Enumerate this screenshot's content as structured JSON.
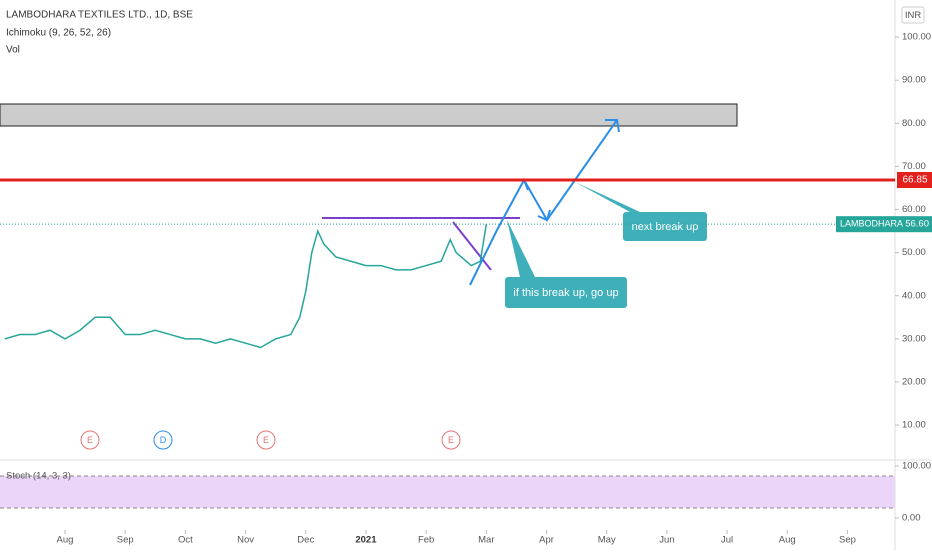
{
  "chart_data": {
    "type": "line",
    "title": "LAMBODHARA TEXTILES LTD., 1D, BSE",
    "indicators": [
      "Ichimoku (9, 26, 52, 26)",
      "Vol"
    ],
    "currency": "INR",
    "x": [
      -1.0,
      -0.75,
      -0.5,
      -0.25,
      0,
      0.25,
      0.5,
      0.75,
      1.0,
      1.25,
      1.5,
      1.75,
      2.0,
      2.25,
      2.5,
      2.75,
      3.0,
      3.25,
      3.5,
      3.75,
      3.9,
      4.0,
      4.1,
      4.2,
      4.3,
      4.5,
      4.75,
      5.0,
      5.25,
      5.5,
      5.75,
      6.0,
      6.25,
      6.4,
      6.5,
      6.75,
      6.9,
      7.0
    ],
    "series": [
      {
        "name": "LAMBODHARA",
        "color": "#26a69a",
        "values": [
          30,
          31,
          31,
          32,
          30,
          32,
          35,
          35,
          31,
          31,
          32,
          31,
          30,
          30,
          29,
          30,
          29,
          28,
          30,
          31,
          35,
          41,
          50,
          55,
          52,
          49,
          48,
          47,
          47,
          46,
          46,
          47,
          48,
          53,
          50,
          47,
          48,
          56.6
        ]
      }
    ],
    "xlim": [
      -1.08,
      13.79
    ],
    "xticks": [
      {
        "value": 0,
        "label": "Aug"
      },
      {
        "value": 1,
        "label": "Sep"
      },
      {
        "value": 2,
        "label": "Oct"
      },
      {
        "value": 3,
        "label": "Nov"
      },
      {
        "value": 4,
        "label": "Dec"
      },
      {
        "value": 5,
        "label": "2021"
      },
      {
        "value": 6,
        "label": "Feb"
      },
      {
        "value": 7,
        "label": "Mar"
      },
      {
        "value": 8,
        "label": "Apr"
      },
      {
        "value": 9,
        "label": "May"
      },
      {
        "value": 10,
        "label": "Jun"
      },
      {
        "value": 11,
        "label": "Jul"
      },
      {
        "value": 12,
        "label": "Aug"
      },
      {
        "value": 13,
        "label": "Sep"
      }
    ],
    "ylim": [
      1.9,
      108.6
    ],
    "yticks": [
      {
        "value": 100,
        "label": "100.00"
      },
      {
        "value": 90,
        "label": "90.00"
      },
      {
        "value": 80,
        "label": "80.00"
      },
      {
        "value": 70,
        "label": "70.00"
      },
      {
        "value": 60,
        "label": "60.00"
      },
      {
        "value": 50,
        "label": "50.00"
      },
      {
        "value": 40,
        "label": "40.00"
      },
      {
        "value": 30,
        "label": "30.00"
      },
      {
        "value": 20,
        "label": "20.00"
      },
      {
        "value": 10,
        "label": "10.00"
      }
    ],
    "resistance": 66.85,
    "last_price": {
      "name": "LAMBODHARA",
      "value": 56.6,
      "label": "56.60"
    },
    "annotations": [
      "next break up",
      "if this break up, go up"
    ],
    "events": [
      "E",
      "D",
      "E",
      "E"
    ],
    "stoch": {
      "title": "Stoch (14, 3, 3)",
      "yticks": [
        {
          "value": 100,
          "label": "100.00"
        },
        {
          "value": 0,
          "label": "0.00"
        }
      ]
    }
  }
}
